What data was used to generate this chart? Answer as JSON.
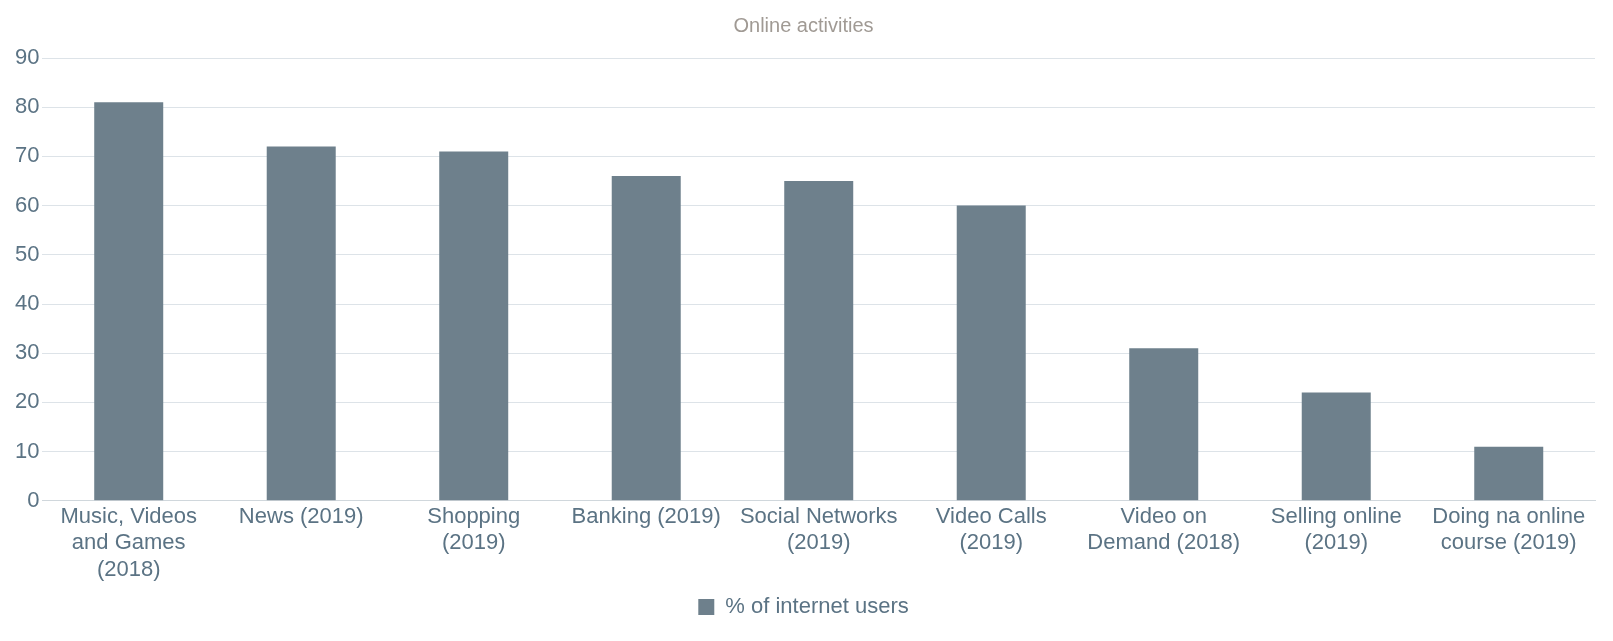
{
  "chart_data": {
    "type": "bar",
    "title": "Online activities",
    "categories": [
      "Music, Videos and Games (2018)",
      "News (2019)",
      "Shopping (2019)",
      "Banking (2019)",
      "Social Networks (2019)",
      "Video Calls (2019)",
      "Video on Demand (2018)",
      "Selling online (2019)",
      "Doing na online course (2019)"
    ],
    "series": [
      {
        "name": "% of internet users",
        "color": "#6e808c",
        "values": [
          81,
          72,
          71,
          66,
          65,
          60,
          31,
          22,
          11
        ]
      }
    ],
    "ylim": [
      0,
      90
    ],
    "yticks": [
      0,
      10,
      20,
      30,
      40,
      50,
      60,
      70,
      80,
      90
    ],
    "grid": "y",
    "legend": "bottom"
  }
}
